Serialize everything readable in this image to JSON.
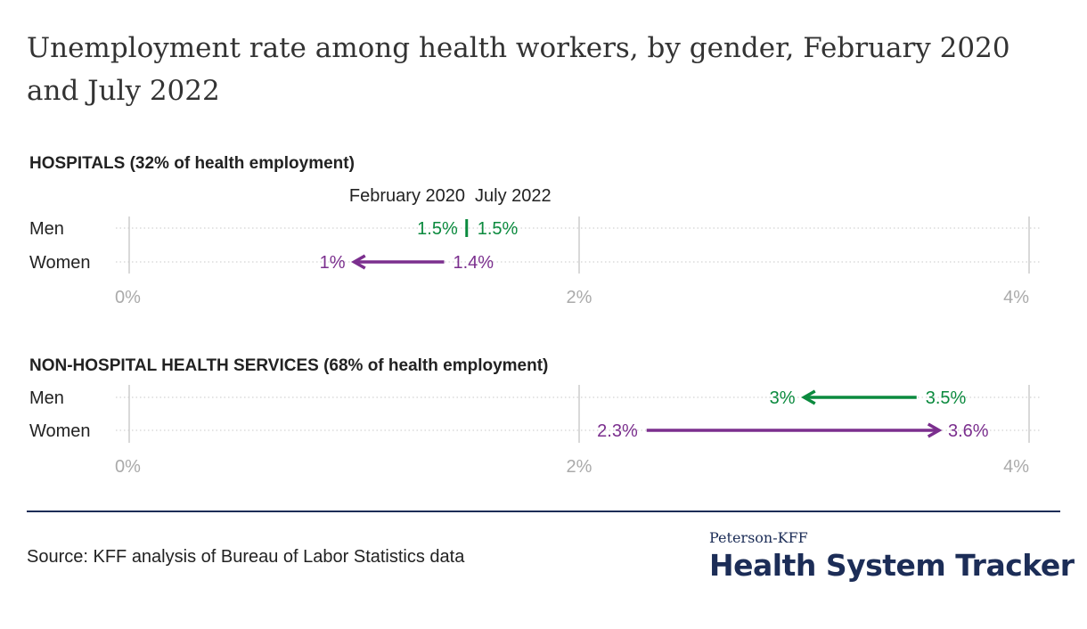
{
  "title": "Unemployment rate among health workers, by gender, February 2020 and July 2022",
  "source": "Source: KFF analysis of Bureau of Labor Statistics data",
  "logo": {
    "top": "Peterson-KFF",
    "bottom": "Health System Tracker"
  },
  "colors": {
    "men": "#0b8a3e",
    "women": "#7b2f8e",
    "axis": "#cccccc",
    "tick_text": "#aaaaaa",
    "dark": "#1c2d57"
  },
  "chart_data": [
    {
      "type": "dumbbell",
      "title": "HOSPITALS (32% of health employment)",
      "legend": [
        "February 2020",
        "July 2022"
      ],
      "xlim": [
        0,
        4
      ],
      "x_ticks": [
        "0%",
        "2%",
        "4%"
      ],
      "rows": [
        {
          "label": "Men",
          "feb2020": 1.5,
          "jul2022": 1.5,
          "feb_label": "1.5%",
          "jul_label": "1.5%"
        },
        {
          "label": "Women",
          "feb2020": 1.4,
          "jul2022": 1.0,
          "feb_label": "1.4%",
          "jul_label": "1%"
        }
      ]
    },
    {
      "type": "dumbbell",
      "title": "NON-HOSPITAL HEALTH SERVICES (68% of health employment)",
      "xlim": [
        0,
        4
      ],
      "x_ticks": [
        "0%",
        "2%",
        "4%"
      ],
      "rows": [
        {
          "label": "Men",
          "feb2020": 3.5,
          "jul2022": 3.0,
          "feb_label": "3.5%",
          "jul_label": "3%"
        },
        {
          "label": "Women",
          "feb2020": 2.3,
          "jul2022": 3.6,
          "feb_label": "2.3%",
          "jul_label": "3.6%"
        }
      ]
    }
  ]
}
